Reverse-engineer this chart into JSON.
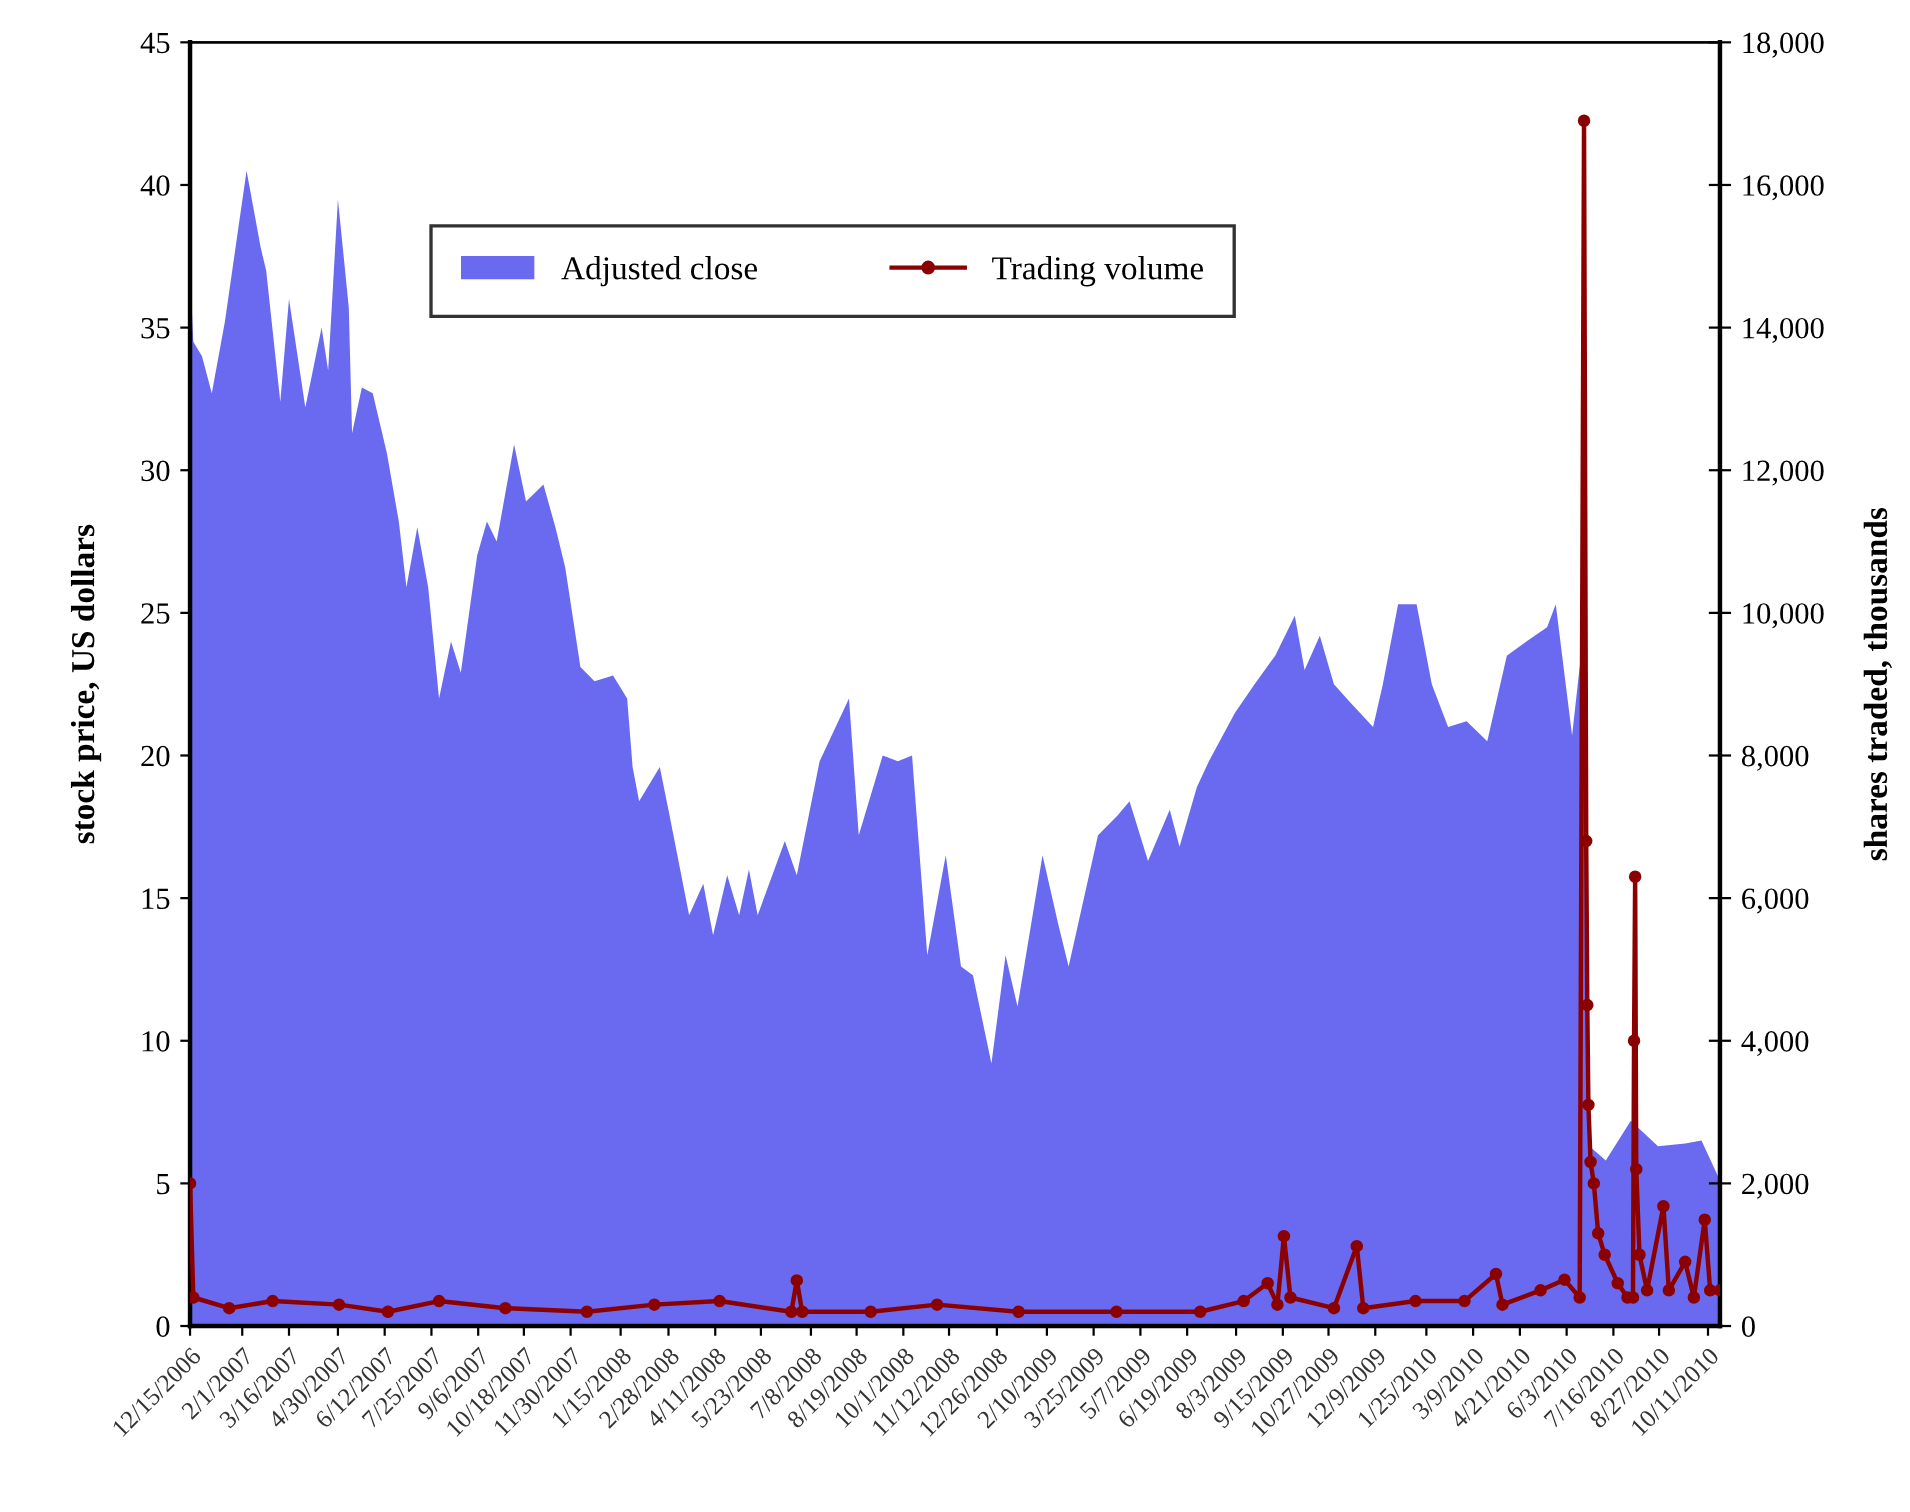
{
  "chart_data": {
    "type": "area",
    "ylabel": "stock price, US dollars",
    "y2label": "shares traded, thousands",
    "xlim": [
      "2006-12-15",
      "2010-10-22"
    ],
    "xticks": [
      {
        "value": "2006-12-15",
        "label": "12/15/2006"
      },
      {
        "value": "2007-02-01",
        "label": "2/1/2007"
      },
      {
        "value": "2007-03-16",
        "label": "3/16/2007"
      },
      {
        "value": "2007-04-30",
        "label": "4/30/2007"
      },
      {
        "value": "2007-06-12",
        "label": "6/12/2007"
      },
      {
        "value": "2007-07-25",
        "label": "7/25/2007"
      },
      {
        "value": "2007-09-06",
        "label": "9/6/2007"
      },
      {
        "value": "2007-10-18",
        "label": "10/18/2007"
      },
      {
        "value": "2007-11-30",
        "label": "11/30/2007"
      },
      {
        "value": "2008-01-15",
        "label": "1/15/2008"
      },
      {
        "value": "2008-02-28",
        "label": "2/28/2008"
      },
      {
        "value": "2008-04-11",
        "label": "4/11/2008"
      },
      {
        "value": "2008-05-23",
        "label": "5/23/2008"
      },
      {
        "value": "2008-07-08",
        "label": "7/8/2008"
      },
      {
        "value": "2008-08-19",
        "label": "8/19/2008"
      },
      {
        "value": "2008-10-01",
        "label": "10/1/2008"
      },
      {
        "value": "2008-11-12",
        "label": "11/12/2008"
      },
      {
        "value": "2008-12-26",
        "label": "12/26/2008"
      },
      {
        "value": "2009-02-10",
        "label": "2/10/2009"
      },
      {
        "value": "2009-03-25",
        "label": "3/25/2009"
      },
      {
        "value": "2009-05-07",
        "label": "5/7/2009"
      },
      {
        "value": "2009-06-19",
        "label": "6/19/2009"
      },
      {
        "value": "2009-08-03",
        "label": "8/3/2009"
      },
      {
        "value": "2009-09-15",
        "label": "9/15/2009"
      },
      {
        "value": "2009-10-27",
        "label": "10/27/2009"
      },
      {
        "value": "2009-12-09",
        "label": "12/9/2009"
      },
      {
        "value": "2010-01-25",
        "label": "1/25/2010"
      },
      {
        "value": "2010-03-09",
        "label": "3/9/2010"
      },
      {
        "value": "2010-04-21",
        "label": "4/21/2010"
      },
      {
        "value": "2010-06-03",
        "label": "6/3/2010"
      },
      {
        "value": "2010-07-16",
        "label": "7/16/2010"
      },
      {
        "value": "2010-08-27",
        "label": "8/27/2010"
      },
      {
        "value": "2010-10-11",
        "label": "10/11/2010"
      }
    ],
    "ylim": [
      0,
      45
    ],
    "yticks": [
      0,
      5,
      10,
      15,
      20,
      25,
      30,
      35,
      40,
      45
    ],
    "y2lim": [
      0,
      18000
    ],
    "y2ticks": [
      0,
      {
        "value": 2000,
        "label": "2,000"
      },
      {
        "value": 4000,
        "label": "4,000"
      },
      {
        "value": 6000,
        "label": "6,000"
      },
      {
        "value": 8000,
        "label": "8,000"
      },
      {
        "value": 10000,
        "label": "10,000"
      },
      {
        "value": 12000,
        "label": "12,000"
      },
      {
        "value": 14000,
        "label": "14,000"
      },
      {
        "value": 16000,
        "label": "16,000"
      },
      {
        "value": 18000,
        "label": "18,000"
      }
    ],
    "grid": false,
    "legend": "top",
    "series": [
      {
        "name": "Adjusted close",
        "color": "#6a6af0",
        "x": [
          "2006-12-15",
          "2006-12-18",
          "2006-12-26",
          "2007-01-04",
          "2007-01-16",
          "2007-02-05",
          "2007-02-18",
          "2007-02-23",
          "2007-03-08",
          "2007-03-16",
          "2007-03-31",
          "2007-04-15",
          "2007-04-21",
          "2007-04-30",
          "2007-05-10",
          "2007-05-13",
          "2007-05-22",
          "2007-06-01",
          "2007-06-14",
          "2007-06-25",
          "2007-07-02",
          "2007-07-12",
          "2007-07-22",
          "2007-08-01",
          "2007-08-12",
          "2007-08-21",
          "2007-09-05",
          "2007-09-14",
          "2007-09-23",
          "2007-10-09",
          "2007-10-20",
          "2007-11-05",
          "2007-11-16",
          "2007-11-25",
          "2007-12-09",
          "2007-12-22",
          "2008-01-08",
          "2008-01-21",
          "2008-01-26",
          "2008-02-01",
          "2008-02-20",
          "2008-02-29",
          "2008-03-18",
          "2008-03-31",
          "2008-04-09",
          "2008-04-22",
          "2008-05-03",
          "2008-05-12",
          "2008-05-20",
          "2008-06-14",
          "2008-06-25",
          "2008-07-16",
          "2008-08-12",
          "2008-08-21",
          "2008-09-12",
          "2008-09-26",
          "2008-10-09",
          "2008-10-23",
          "2008-11-09",
          "2008-11-23",
          "2008-12-04",
          "2008-12-21",
          "2009-01-03",
          "2009-01-14",
          "2009-02-06",
          "2009-02-21",
          "2009-03-02",
          "2009-03-29",
          "2009-04-16",
          "2009-04-27",
          "2009-05-14",
          "2009-06-03",
          "2009-06-12",
          "2009-06-28",
          "2009-07-09",
          "2009-08-02",
          "2009-08-20",
          "2009-09-08",
          "2009-09-26",
          "2009-10-05",
          "2009-10-19",
          "2009-11-01",
          "2009-11-15",
          "2009-12-07",
          "2009-12-16",
          "2009-12-30",
          "2010-01-16",
          "2010-01-30",
          "2010-02-14",
          "2010-03-03",
          "2010-03-22",
          "2010-04-09",
          "2010-04-27",
          "2010-05-16",
          "2010-05-24",
          "2010-06-08",
          "2010-06-15",
          "2010-06-19",
          "2010-06-24",
          "2010-07-09",
          "2010-08-01",
          "2010-08-26",
          "2010-09-20",
          "2010-10-05",
          "2010-10-22"
        ],
        "values": [
          37.1,
          34.5,
          34,
          32.7,
          35.2,
          40.5,
          37.8,
          37,
          32.4,
          36,
          32.2,
          35,
          33.5,
          39.5,
          35.7,
          31.3,
          32.9,
          32.7,
          30.6,
          28.2,
          25.9,
          28,
          25.9,
          22,
          24,
          22.9,
          27,
          28.2,
          27.5,
          30.9,
          28.9,
          29.5,
          28,
          26.6,
          23.1,
          22.6,
          22.8,
          22,
          19.6,
          18.4,
          19.6,
          17.9,
          14.4,
          15.5,
          13.7,
          15.8,
          14.4,
          16,
          14.4,
          17,
          15.8,
          19.8,
          22,
          17.2,
          20,
          19.8,
          20,
          13,
          16.5,
          12.6,
          12.3,
          9.2,
          13,
          11.2,
          16.5,
          14,
          12.6,
          17.2,
          17.9,
          18.4,
          16.3,
          18.1,
          16.8,
          18.9,
          19.8,
          21.5,
          22.5,
          23.5,
          24.9,
          23,
          24.2,
          22.5,
          21.9,
          21,
          22.5,
          25.3,
          25.3,
          22.5,
          21,
          21.2,
          20.5,
          23.5,
          24,
          24.5,
          25.3,
          20.7,
          23.1,
          23.5,
          6.3,
          5.8,
          7.2,
          6.3,
          6.4,
          6.5,
          5.1
        ]
      },
      {
        "name": "Trading volume",
        "type": "line",
        "axis": "y2",
        "color": "#8b0000",
        "marker": "circle",
        "line_style": "solid",
        "x": [
          "2006-12-15",
          "2006-12-18",
          "2007-01-20",
          "2007-03-01",
          "2007-05-01",
          "2007-06-15",
          "2007-08-01",
          "2007-10-01",
          "2007-12-15",
          "2008-02-15",
          "2008-04-15",
          "2008-06-20",
          "2008-06-25",
          "2008-06-30",
          "2008-09-01",
          "2008-11-01",
          "2009-01-15",
          "2009-04-15",
          "2009-07-01",
          "2009-08-10",
          "2009-09-01",
          "2009-09-10",
          "2009-09-16",
          "2009-09-22",
          "2009-11-01",
          "2009-11-22",
          "2009-11-28",
          "2010-01-15",
          "2010-03-01",
          "2010-03-30",
          "2010-04-05",
          "2010-05-10",
          "2010-06-01",
          "2010-06-15",
          "2010-06-19",
          "2010-06-21",
          "2010-06-22",
          "2010-06-23",
          "2010-06-25",
          "2010-06-28",
          "2010-07-02",
          "2010-07-08",
          "2010-07-20",
          "2010-07-29",
          "2010-08-03",
          "2010-08-04",
          "2010-08-05",
          "2010-08-06",
          "2010-08-09",
          "2010-08-16",
          "2010-08-31",
          "2010-09-05",
          "2010-09-20",
          "2010-09-28",
          "2010-10-08",
          "2010-10-13",
          "2010-10-22"
        ],
        "values": [
          2000,
          400,
          250,
          350,
          300,
          200,
          350,
          250,
          200,
          300,
          350,
          200,
          640,
          200,
          200,
          300,
          200,
          200,
          200,
          350,
          600,
          300,
          1260,
          400,
          250,
          1120,
          250,
          350,
          350,
          730,
          300,
          500,
          650,
          400,
          16900,
          6800,
          4500,
          3100,
          2300,
          2000,
          1300,
          1000,
          600,
          400,
          400,
          4000,
          6300,
          2200,
          1000,
          500,
          1680,
          500,
          900,
          400,
          1490,
          500,
          500
        ]
      }
    ]
  }
}
